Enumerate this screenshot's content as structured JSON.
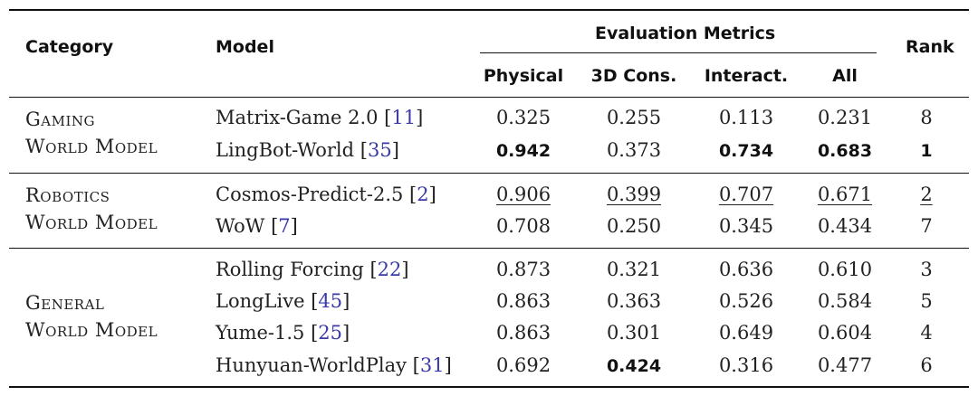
{
  "headers": {
    "category": "Category",
    "model": "Model",
    "metrics_group": "Evaluation Metrics",
    "rank": "Rank",
    "metrics": [
      "Physical",
      "3D Cons.",
      "Interact.",
      "All"
    ]
  },
  "groups": [
    {
      "category_line1": "Gaming",
      "category_line2": "World Model",
      "rows": [
        {
          "model": "Matrix-Game 2.0",
          "ref": "11",
          "physical": "0.325",
          "cons3d": "0.255",
          "interact": "0.113",
          "all": "0.231",
          "rank": "8"
        },
        {
          "model": "LingBot-World",
          "ref": "35",
          "physical": "0.942",
          "cons3d": "0.373",
          "interact": "0.734",
          "all": "0.683",
          "rank": "1"
        }
      ]
    },
    {
      "category_line1": "Robotics",
      "category_line2": "World Model",
      "rows": [
        {
          "model": "Cosmos-Predict-2.5",
          "ref": "2",
          "physical": "0.906",
          "cons3d": "0.399",
          "interact": "0.707",
          "all": "0.671",
          "rank": "2"
        },
        {
          "model": "WoW",
          "ref": "7",
          "physical": "0.708",
          "cons3d": "0.250",
          "interact": "0.345",
          "all": "0.434",
          "rank": "7"
        }
      ]
    },
    {
      "category_line1": "General",
      "category_line2": "World Model",
      "rows": [
        {
          "model": "Rolling Forcing",
          "ref": "22",
          "physical": "0.873",
          "cons3d": "0.321",
          "interact": "0.636",
          "all": "0.610",
          "rank": "3"
        },
        {
          "model": "LongLive",
          "ref": "45",
          "physical": "0.863",
          "cons3d": "0.363",
          "interact": "0.526",
          "all": "0.584",
          "rank": "5"
        },
        {
          "model": "Yume-1.5",
          "ref": "25",
          "physical": "0.863",
          "cons3d": "0.301",
          "interact": "0.649",
          "all": "0.604",
          "rank": "4"
        },
        {
          "model": "Hunyuan-WorldPlay",
          "ref": "31",
          "physical": "0.692",
          "cons3d": "0.424",
          "interact": "0.316",
          "all": "0.477",
          "rank": "6"
        }
      ]
    }
  ]
}
